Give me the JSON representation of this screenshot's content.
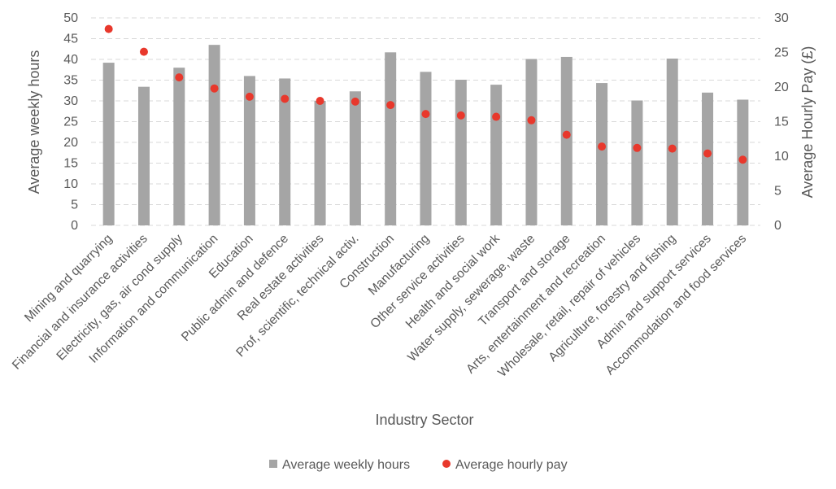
{
  "chart_data": {
    "type": "bar",
    "categories": [
      "Mining and quarrying",
      "Financial and insurance activities",
      "Electricity, gas, air cond supply",
      "Information and communication",
      "Education",
      "Public admin and defence",
      "Real estate activities",
      "Prof, scientific, technical activ.",
      "Construction",
      "Manufacturing",
      "Other service activities",
      "Health and social work",
      "Water supply, sewerage, waste",
      "Transport and storage",
      "Arts, entertainment and recreation",
      "Wholesale, retail, repair of vehicles",
      "Agriculture, forestry and fishing",
      "Admin and support services",
      "Accommodation and food services"
    ],
    "series": [
      {
        "name": "Average weekly hours",
        "type": "bar",
        "axis": "left",
        "color": "#a5a5a5",
        "values": [
          39.2,
          33.4,
          38.0,
          43.5,
          36.0,
          35.4,
          30.0,
          32.3,
          41.7,
          37.0,
          35.1,
          33.9,
          40.1,
          40.6,
          34.3,
          30.1,
          40.2,
          32.0,
          30.3
        ]
      },
      {
        "name": "Average hourly pay",
        "type": "scatter",
        "axis": "right",
        "color": "#e8382c",
        "values": [
          28.4,
          25.1,
          21.4,
          19.8,
          18.6,
          18.3,
          18.0,
          17.9,
          17.4,
          16.1,
          15.9,
          15.7,
          15.2,
          13.1,
          11.4,
          11.2,
          11.1,
          10.4,
          9.5
        ]
      }
    ],
    "xlabel": "Industry Sector",
    "ylabel": "Average weekly hours",
    "y2label": "Average Hourly Pay (£)",
    "ylim": [
      0,
      50
    ],
    "y2lim": [
      0,
      30
    ],
    "yticks": [
      "0",
      "5",
      "10",
      "15",
      "20",
      "25",
      "30",
      "35",
      "40",
      "45",
      "50"
    ],
    "y2ticks": [
      "0",
      "5",
      "10",
      "15",
      "20",
      "25",
      "30"
    ],
    "grid": true,
    "legend": "bottom"
  }
}
